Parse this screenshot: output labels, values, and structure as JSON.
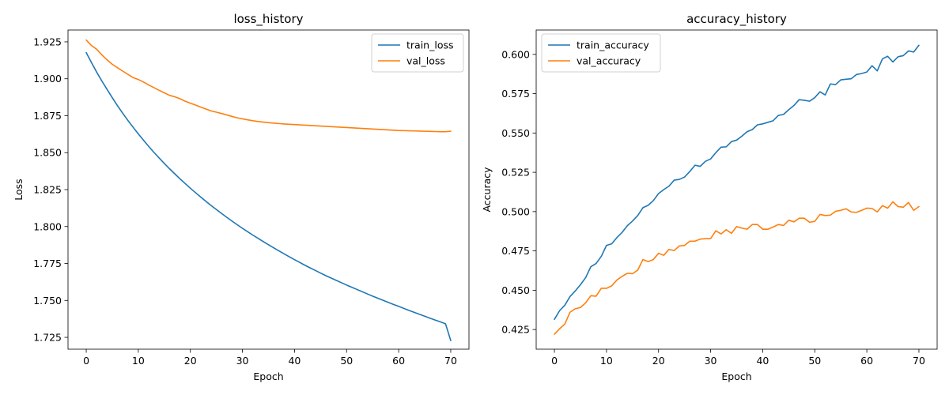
{
  "chart_data": [
    {
      "type": "line",
      "title": "loss_history",
      "xlabel": "Epoch",
      "ylabel": "Loss",
      "xlim": [
        -3.5,
        73.5
      ],
      "ylim": [
        1.717,
        1.933
      ],
      "xticks": [
        0,
        10,
        20,
        30,
        40,
        50,
        60,
        70
      ],
      "yticks": [
        1.725,
        1.75,
        1.775,
        1.8,
        1.825,
        1.85,
        1.875,
        1.9,
        1.925
      ],
      "ytick_decimals": 3,
      "legend": "top-right",
      "grid": false,
      "series": [
        {
          "name": "train_loss",
          "color": "#1f77b4",
          "values": [
            1.9177,
            1.911,
            1.9045,
            1.8985,
            1.8928,
            1.8872,
            1.8818,
            1.8767,
            1.8718,
            1.8672,
            1.8627,
            1.8584,
            1.8542,
            1.8502,
            1.8464,
            1.8427,
            1.8391,
            1.8357,
            1.8323,
            1.8291,
            1.8259,
            1.8229,
            1.8199,
            1.817,
            1.8142,
            1.8115,
            1.8088,
            1.8062,
            1.8037,
            1.8012,
            1.7988,
            1.7965,
            1.7942,
            1.792,
            1.7898,
            1.7877,
            1.7856,
            1.7835,
            1.7815,
            1.7795,
            1.7776,
            1.7757,
            1.7738,
            1.772,
            1.7703,
            1.7685,
            1.7668,
            1.7652,
            1.7636,
            1.762,
            1.7604,
            1.7589,
            1.7574,
            1.7559,
            1.7544,
            1.7529,
            1.7515,
            1.7501,
            1.7487,
            1.7473,
            1.746,
            1.7446,
            1.7432,
            1.7419,
            1.7406,
            1.7393,
            1.738,
            1.7367,
            1.7355,
            1.7342,
            1.7228
          ]
        },
        {
          "name": "val_loss",
          "color": "#ff7f0e",
          "values": [
            1.9262,
            1.9225,
            1.92,
            1.9162,
            1.9128,
            1.9098,
            1.9075,
            1.9052,
            1.903,
            1.9008,
            1.8995,
            1.8978,
            1.8958,
            1.894,
            1.8922,
            1.8905,
            1.8888,
            1.8878,
            1.8865,
            1.8848,
            1.8835,
            1.8822,
            1.8808,
            1.8795,
            1.8782,
            1.8774,
            1.8765,
            1.8755,
            1.8745,
            1.8736,
            1.8729,
            1.8722,
            1.8716,
            1.8711,
            1.8707,
            1.8703,
            1.87,
            1.8697,
            1.8694,
            1.8692,
            1.869,
            1.8688,
            1.8686,
            1.8684,
            1.8682,
            1.868,
            1.8678,
            1.8676,
            1.8674,
            1.8672,
            1.867,
            1.8668,
            1.8666,
            1.8664,
            1.8662,
            1.866,
            1.8658,
            1.8656,
            1.8654,
            1.8652,
            1.865,
            1.8649,
            1.8648,
            1.8647,
            1.8646,
            1.8645,
            1.8644,
            1.8643,
            1.8642,
            1.8642,
            1.8645
          ]
        }
      ]
    },
    {
      "type": "line",
      "title": "accuracy_history",
      "xlabel": "Epoch",
      "ylabel": "Accuracy",
      "xlim": [
        -3.5,
        73.5
      ],
      "ylim": [
        0.4125,
        0.6155
      ],
      "xticks": [
        0,
        10,
        20,
        30,
        40,
        50,
        60,
        70
      ],
      "yticks": [
        0.425,
        0.45,
        0.475,
        0.5,
        0.525,
        0.55,
        0.575,
        0.6
      ],
      "ytick_decimals": 3,
      "legend": "top-left",
      "grid": false,
      "series": [
        {
          "name": "train_accuracy",
          "color": "#1f77b4",
          "values": [
            0.4315,
            0.437,
            0.4405,
            0.446,
            0.4495,
            0.4535,
            0.458,
            0.465,
            0.467,
            0.4715,
            0.4785,
            0.4795,
            0.4835,
            0.4868,
            0.491,
            0.494,
            0.4975,
            0.5025,
            0.504,
            0.507,
            0.5115,
            0.514,
            0.5162,
            0.52,
            0.5205,
            0.522,
            0.5255,
            0.5295,
            0.5288,
            0.532,
            0.5335,
            0.5375,
            0.541,
            0.5412,
            0.5445,
            0.5455,
            0.548,
            0.5508,
            0.5522,
            0.5552,
            0.5558,
            0.5568,
            0.5578,
            0.5612,
            0.5618,
            0.5648,
            0.5675,
            0.5712,
            0.5708,
            0.5702,
            0.5725,
            0.5762,
            0.5742,
            0.5812,
            0.5808,
            0.5838,
            0.5842,
            0.5845,
            0.5872,
            0.5878,
            0.5888,
            0.5928,
            0.5895,
            0.5972,
            0.5988,
            0.5952,
            0.5985,
            0.5992,
            0.6022,
            0.6015,
            0.6058
          ]
        },
        {
          "name": "val_accuracy",
          "color": "#ff7f0e",
          "values": [
            0.422,
            0.4255,
            0.4285,
            0.436,
            0.4382,
            0.439,
            0.442,
            0.4465,
            0.4462,
            0.4512,
            0.4512,
            0.4528,
            0.4565,
            0.4588,
            0.4608,
            0.4605,
            0.4628,
            0.4695,
            0.4682,
            0.4695,
            0.4735,
            0.4722,
            0.476,
            0.4752,
            0.4782,
            0.4785,
            0.4812,
            0.4812,
            0.4825,
            0.4828,
            0.4828,
            0.4878,
            0.4858,
            0.4885,
            0.4862,
            0.4905,
            0.4895,
            0.4888,
            0.4918,
            0.4918,
            0.4888,
            0.4888,
            0.4902,
            0.4918,
            0.4912,
            0.4945,
            0.4935,
            0.4958,
            0.4958,
            0.4932,
            0.4938,
            0.4982,
            0.4975,
            0.4978,
            0.5002,
            0.5008,
            0.5018,
            0.4998,
            0.4995,
            0.5008,
            0.5022,
            0.502,
            0.4998,
            0.5038,
            0.5022,
            0.5062,
            0.5032,
            0.5028,
            0.5058,
            0.5008,
            0.5032
          ]
        }
      ]
    }
  ]
}
